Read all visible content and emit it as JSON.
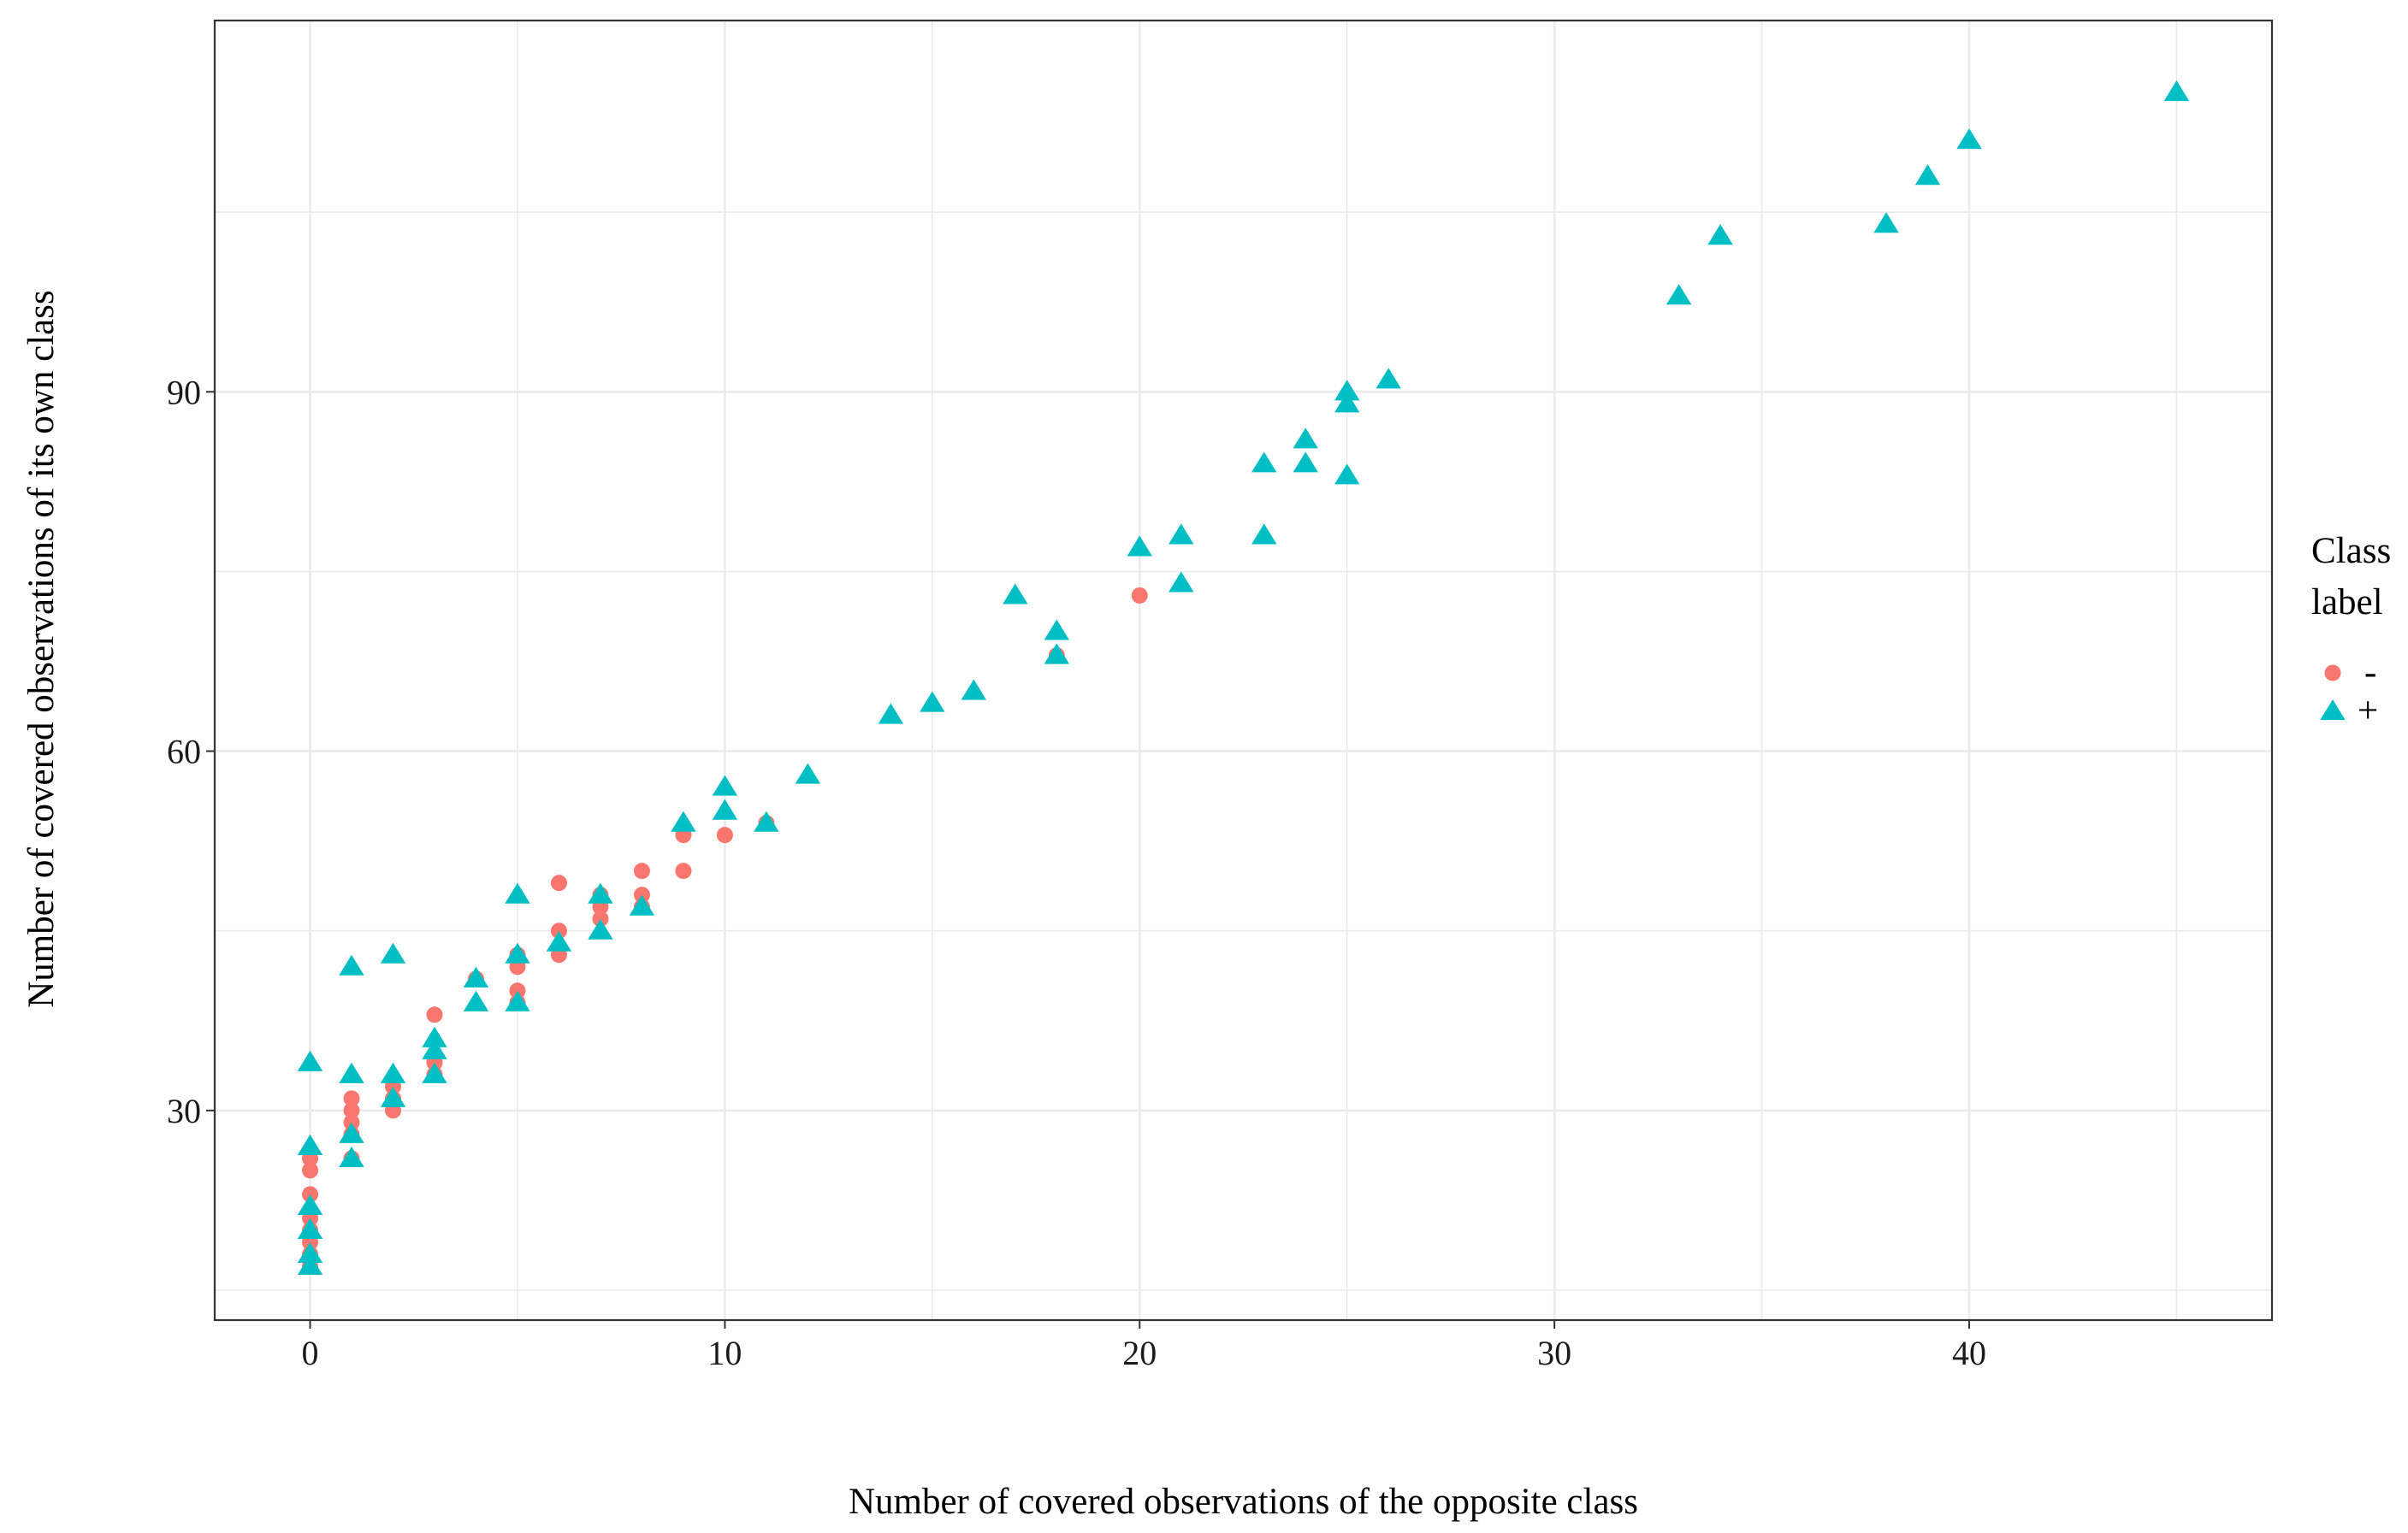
{
  "chart_data": {
    "type": "scatter",
    "title": "",
    "xlabel": "Number of covered observations of the opposite class",
    "ylabel": "Number of covered observations of its own class",
    "xlim": [
      -2.3,
      47.3
    ],
    "ylim": [
      12.5,
      121
    ],
    "xticks": [
      0,
      10,
      20,
      30,
      40
    ],
    "xtick_labels": [
      "0",
      "10",
      "20",
      "30",
      "40"
    ],
    "yticks": [
      30,
      60,
      90
    ],
    "ytick_labels": [
      "30",
      "60",
      "90"
    ],
    "x_minor_grid": [
      5,
      15,
      25,
      35,
      45
    ],
    "y_minor_grid": [
      15,
      45,
      75,
      105
    ],
    "grid": true,
    "legend": {
      "title": [
        "Class",
        "label"
      ],
      "position": "right",
      "entries": [
        {
          "label": "-",
          "shape": "circle",
          "color": "#F8766D"
        },
        {
          "label": "+",
          "shape": "triangle",
          "color": "#00BFC4"
        }
      ]
    },
    "series": [
      {
        "name": "-",
        "shape": "circle",
        "color": "#F8766D",
        "points": [
          [
            0,
            17
          ],
          [
            0,
            18
          ],
          [
            0,
            19
          ],
          [
            0,
            20
          ],
          [
            0,
            21
          ],
          [
            0,
            23
          ],
          [
            0,
            25
          ],
          [
            0,
            26
          ],
          [
            1,
            26
          ],
          [
            1,
            28
          ],
          [
            1,
            29
          ],
          [
            1,
            30
          ],
          [
            1,
            31
          ],
          [
            2,
            30
          ],
          [
            2,
            31
          ],
          [
            2,
            32
          ],
          [
            3,
            33
          ],
          [
            3,
            34
          ],
          [
            3,
            38
          ],
          [
            4,
            41
          ],
          [
            5,
            39
          ],
          [
            5,
            40
          ],
          [
            5,
            42
          ],
          [
            5,
            43
          ],
          [
            6,
            43
          ],
          [
            6,
            45
          ],
          [
            6,
            49
          ],
          [
            7,
            46
          ],
          [
            7,
            47
          ],
          [
            7,
            48
          ],
          [
            8,
            47
          ],
          [
            8,
            48
          ],
          [
            8,
            50
          ],
          [
            9,
            50
          ],
          [
            9,
            53
          ],
          [
            10,
            53
          ],
          [
            11,
            54
          ],
          [
            18,
            68
          ],
          [
            20,
            73
          ]
        ]
      },
      {
        "name": "+",
        "shape": "triangle",
        "color": "#00BFC4",
        "points": [
          [
            0,
            17
          ],
          [
            0,
            18
          ],
          [
            0,
            20
          ],
          [
            0,
            22
          ],
          [
            0,
            27
          ],
          [
            0,
            34
          ],
          [
            1,
            26
          ],
          [
            1,
            28
          ],
          [
            1,
            33
          ],
          [
            1,
            42
          ],
          [
            2,
            31
          ],
          [
            2,
            33
          ],
          [
            2,
            43
          ],
          [
            3,
            33
          ],
          [
            3,
            35
          ],
          [
            3,
            36
          ],
          [
            4,
            39
          ],
          [
            4,
            41
          ],
          [
            5,
            39
          ],
          [
            5,
            43
          ],
          [
            5,
            48
          ],
          [
            6,
            44
          ],
          [
            7,
            45
          ],
          [
            7,
            48
          ],
          [
            8,
            47
          ],
          [
            9,
            54
          ],
          [
            10,
            55
          ],
          [
            10,
            57
          ],
          [
            11,
            54
          ],
          [
            12,
            58
          ],
          [
            14,
            63
          ],
          [
            15,
            64
          ],
          [
            16,
            65
          ],
          [
            17,
            73
          ],
          [
            18,
            68
          ],
          [
            18,
            70
          ],
          [
            20,
            77
          ],
          [
            21,
            74
          ],
          [
            21,
            78
          ],
          [
            23,
            78
          ],
          [
            23,
            84
          ],
          [
            24,
            84
          ],
          [
            24,
            86
          ],
          [
            25,
            83
          ],
          [
            25,
            89
          ],
          [
            25,
            90
          ],
          [
            26,
            91
          ],
          [
            33,
            98
          ],
          [
            34,
            103
          ],
          [
            38,
            104
          ],
          [
            39,
            108
          ],
          [
            40,
            111
          ],
          [
            45,
            115
          ]
        ]
      }
    ]
  }
}
